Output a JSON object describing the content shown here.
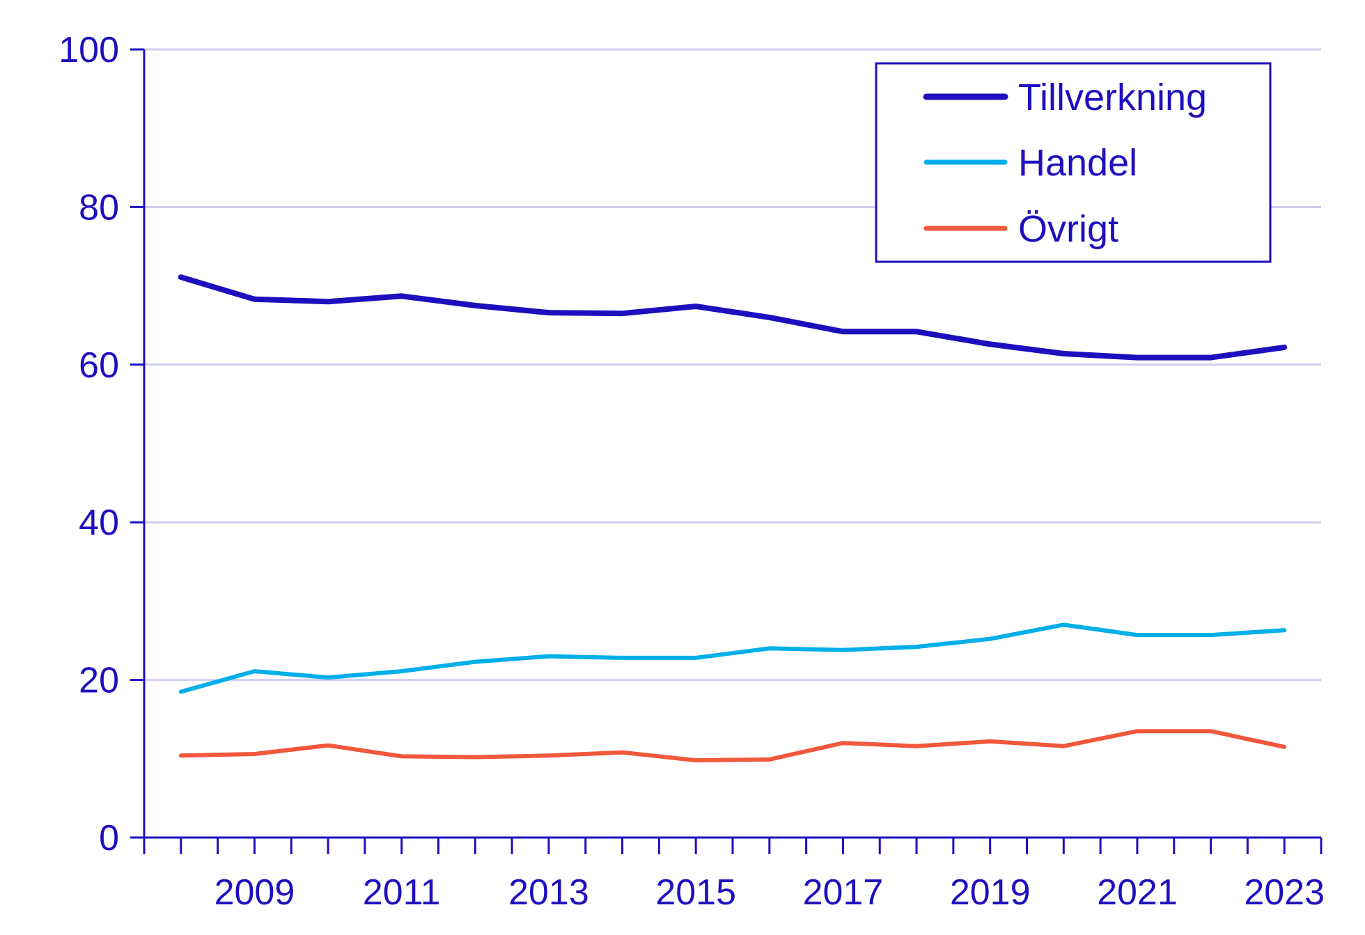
{
  "chart_data": {
    "type": "line",
    "title": "",
    "xlabel": "",
    "ylabel": "",
    "x": [
      2008,
      2009,
      2010,
      2011,
      2012,
      2013,
      2014,
      2015,
      2016,
      2017,
      2018,
      2019,
      2020,
      2021,
      2022,
      2023
    ],
    "xlim": [
      2007.5,
      2023.5
    ],
    "ylim": [
      0,
      100
    ],
    "yticks": [
      0,
      20,
      40,
      60,
      80,
      100
    ],
    "xtick_labels": [
      2009,
      2011,
      2013,
      2015,
      2017,
      2019,
      2021,
      2023
    ],
    "grid": "horizontal",
    "legend_position": "top-right",
    "series": [
      {
        "name": "Tillverkning",
        "color": "#1e0fbe",
        "values": [
          71.1,
          68.3,
          68.0,
          68.7,
          67.5,
          66.6,
          66.5,
          67.4,
          66.0,
          64.2,
          64.2,
          62.6,
          61.4,
          60.9,
          60.9,
          62.2
        ]
      },
      {
        "name": "Handel",
        "color": "#00aee8",
        "values": [
          18.5,
          21.1,
          20.3,
          21.1,
          22.3,
          23.0,
          22.8,
          22.8,
          24.0,
          23.8,
          24.2,
          25.2,
          27.0,
          25.7,
          25.7,
          26.3
        ]
      },
      {
        "name": "Övrigt",
        "color": "#f1583c",
        "values": [
          10.4,
          10.6,
          11.7,
          10.3,
          10.2,
          10.4,
          10.8,
          9.8,
          9.9,
          12.0,
          11.6,
          12.2,
          11.6,
          13.5,
          13.5,
          11.5
        ]
      }
    ]
  },
  "colors": {
    "axis": "#1e0fbe",
    "grid": "#d0cdf0"
  }
}
